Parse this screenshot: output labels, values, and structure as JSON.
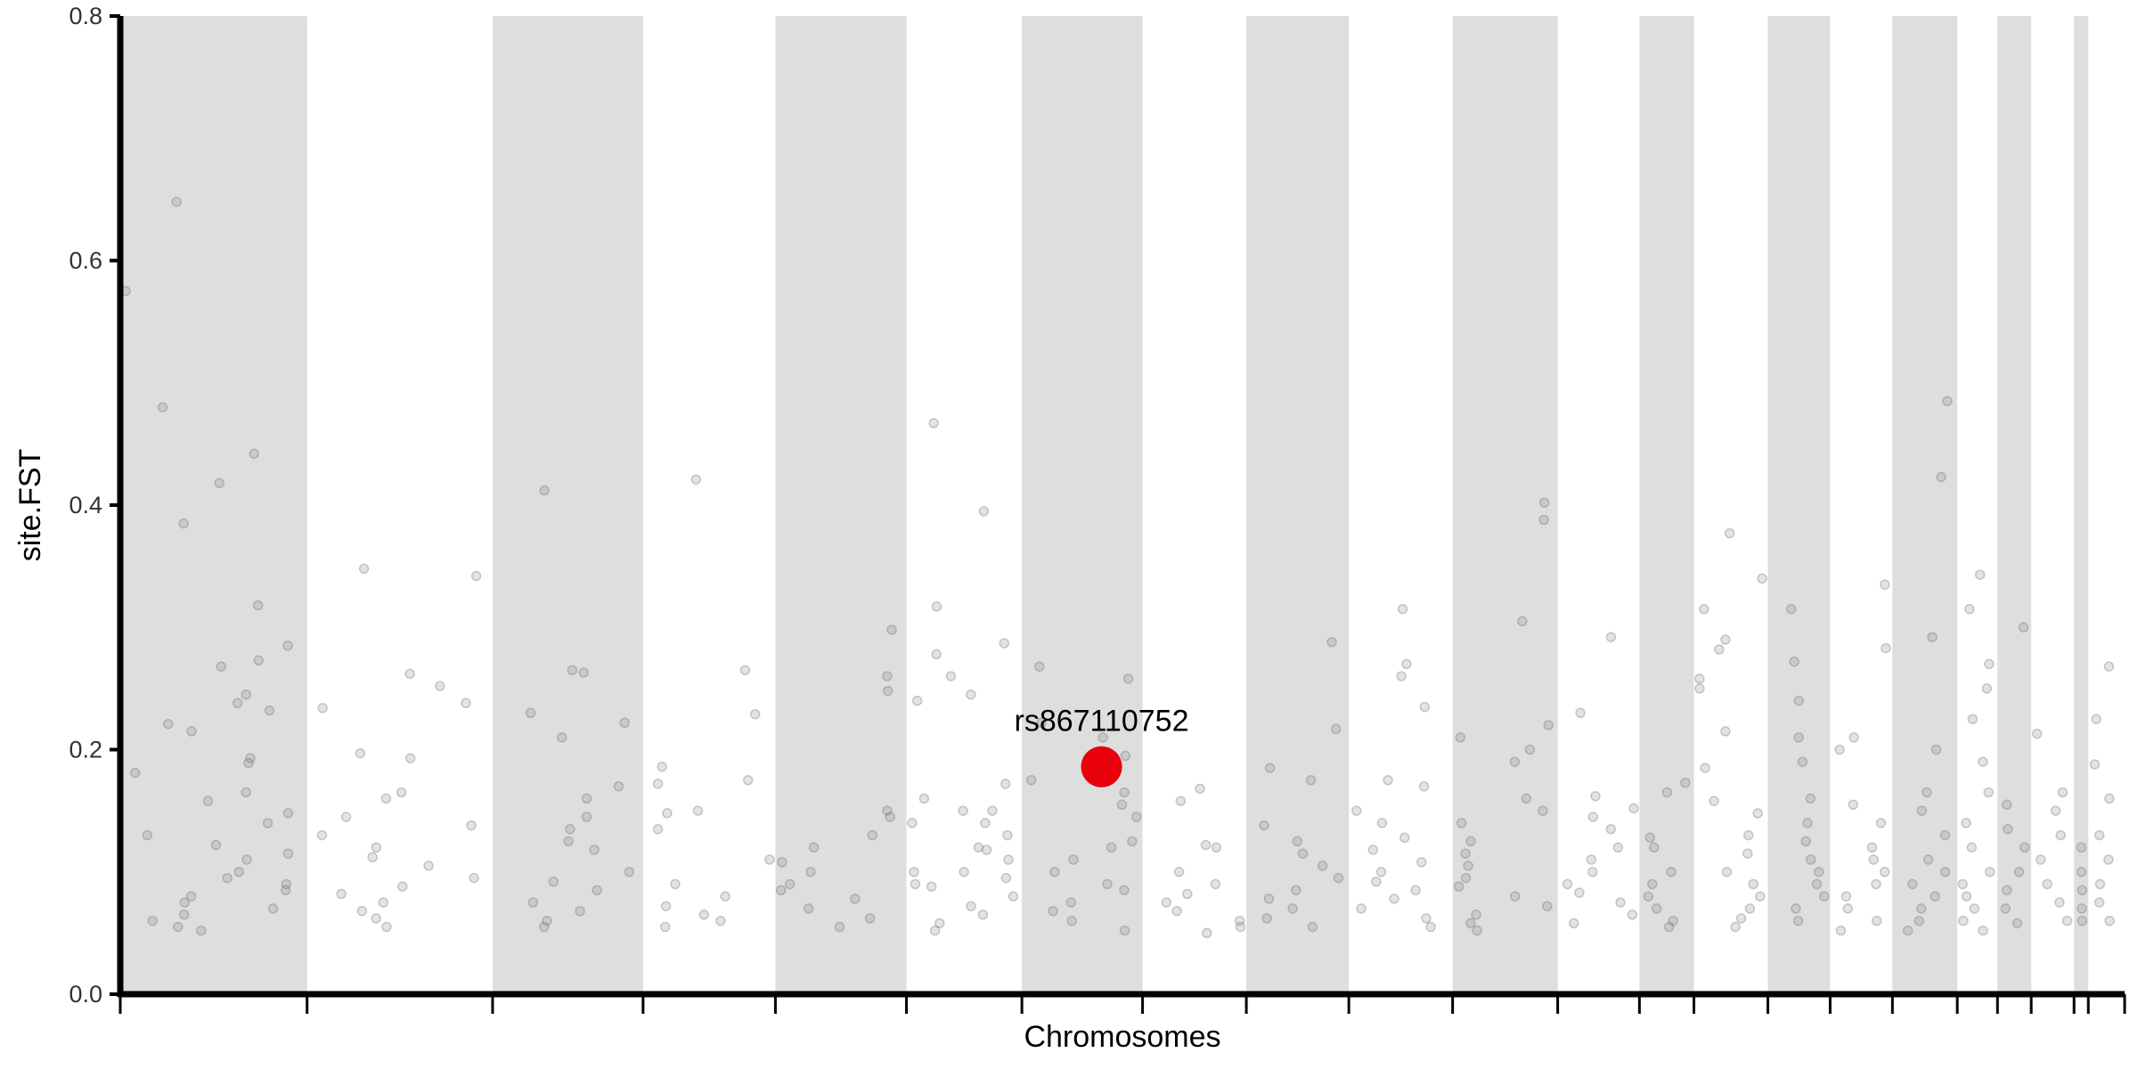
{
  "chart_data": {
    "type": "scatter",
    "title": "",
    "xlabel": "Chromosomes",
    "ylabel": "site.FST",
    "ylim": [
      0,
      0.8
    ],
    "yticks": [
      "0.0",
      "0.2",
      "0.4",
      "0.6",
      "0.8"
    ],
    "grid": false,
    "legend": "none",
    "chromosome_bands": "alternating grey / white",
    "point_color": "#808080",
    "band_color": "#dedede",
    "highlight_color": "#e8000b",
    "chromosome_count": 22,
    "chromosome_widths": [
      144,
      143,
      116,
      102,
      101,
      89,
      93,
      80,
      79,
      80,
      81,
      63,
      42,
      57,
      48,
      48,
      50,
      31,
      26,
      33,
      11,
      28
    ],
    "points": [
      [
        1,
        0.575
      ],
      [
        1,
        0.285
      ],
      [
        1,
        0.648
      ],
      [
        1,
        0.48
      ],
      [
        1,
        0.442
      ],
      [
        1,
        0.418
      ],
      [
        1,
        0.385
      ],
      [
        1,
        0.318
      ],
      [
        1,
        0.273
      ],
      [
        1,
        0.268
      ],
      [
        1,
        0.245
      ],
      [
        1,
        0.238
      ],
      [
        1,
        0.232
      ],
      [
        1,
        0.221
      ],
      [
        1,
        0.215
      ],
      [
        1,
        0.193
      ],
      [
        1,
        0.189
      ],
      [
        1,
        0.181
      ],
      [
        1,
        0.165
      ],
      [
        1,
        0.158
      ],
      [
        1,
        0.148
      ],
      [
        1,
        0.14
      ],
      [
        1,
        0.13
      ],
      [
        1,
        0.122
      ],
      [
        1,
        0.115
      ],
      [
        1,
        0.11
      ],
      [
        1,
        0.1
      ],
      [
        1,
        0.095
      ],
      [
        1,
        0.09
      ],
      [
        1,
        0.085
      ],
      [
        1,
        0.08
      ],
      [
        1,
        0.075
      ],
      [
        1,
        0.07
      ],
      [
        1,
        0.065
      ],
      [
        1,
        0.06
      ],
      [
        1,
        0.055
      ],
      [
        1,
        0.052
      ],
      [
        2,
        0.348
      ],
      [
        2,
        0.342
      ],
      [
        2,
        0.262
      ],
      [
        2,
        0.252
      ],
      [
        2,
        0.238
      ],
      [
        2,
        0.234
      ],
      [
        2,
        0.197
      ],
      [
        2,
        0.193
      ],
      [
        2,
        0.165
      ],
      [
        2,
        0.16
      ],
      [
        2,
        0.145
      ],
      [
        2,
        0.138
      ],
      [
        2,
        0.13
      ],
      [
        2,
        0.12
      ],
      [
        2,
        0.112
      ],
      [
        2,
        0.105
      ],
      [
        2,
        0.095
      ],
      [
        2,
        0.088
      ],
      [
        2,
        0.082
      ],
      [
        2,
        0.075
      ],
      [
        2,
        0.068
      ],
      [
        2,
        0.062
      ],
      [
        2,
        0.055
      ],
      [
        3,
        0.412
      ],
      [
        3,
        0.265
      ],
      [
        3,
        0.263
      ],
      [
        3,
        0.23
      ],
      [
        3,
        0.222
      ],
      [
        3,
        0.21
      ],
      [
        3,
        0.17
      ],
      [
        3,
        0.16
      ],
      [
        3,
        0.145
      ],
      [
        3,
        0.135
      ],
      [
        3,
        0.125
      ],
      [
        3,
        0.118
      ],
      [
        3,
        0.1
      ],
      [
        3,
        0.092
      ],
      [
        3,
        0.085
      ],
      [
        3,
        0.075
      ],
      [
        3,
        0.068
      ],
      [
        3,
        0.06
      ],
      [
        3,
        0.055
      ],
      [
        4,
        0.421
      ],
      [
        4,
        0.265
      ],
      [
        4,
        0.229
      ],
      [
        4,
        0.186
      ],
      [
        4,
        0.175
      ],
      [
        4,
        0.172
      ],
      [
        4,
        0.15
      ],
      [
        4,
        0.148
      ],
      [
        4,
        0.135
      ],
      [
        4,
        0.11
      ],
      [
        4,
        0.09
      ],
      [
        4,
        0.08
      ],
      [
        4,
        0.072
      ],
      [
        4,
        0.065
      ],
      [
        4,
        0.06
      ],
      [
        4,
        0.055
      ],
      [
        5,
        0.298
      ],
      [
        5,
        0.26
      ],
      [
        5,
        0.248
      ],
      [
        5,
        0.15
      ],
      [
        5,
        0.145
      ],
      [
        5,
        0.13
      ],
      [
        5,
        0.12
      ],
      [
        5,
        0.108
      ],
      [
        5,
        0.1
      ],
      [
        5,
        0.09
      ],
      [
        5,
        0.085
      ],
      [
        5,
        0.078
      ],
      [
        5,
        0.07
      ],
      [
        5,
        0.062
      ],
      [
        5,
        0.055
      ],
      [
        6,
        0.395
      ],
      [
        6,
        0.317
      ],
      [
        6,
        0.287
      ],
      [
        6,
        0.278
      ],
      [
        6,
        0.26
      ],
      [
        6,
        0.172
      ],
      [
        6,
        0.16
      ],
      [
        6,
        0.15
      ],
      [
        6,
        0.14
      ],
      [
        6,
        0.13
      ],
      [
        6,
        0.12
      ],
      [
        6,
        0.11
      ],
      [
        6,
        0.1
      ],
      [
        6,
        0.095
      ],
      [
        6,
        0.088
      ],
      [
        6,
        0.08
      ],
      [
        6,
        0.072
      ],
      [
        6,
        0.065
      ],
      [
        6,
        0.058
      ],
      [
        6,
        0.052
      ],
      [
        6,
        0.467
      ],
      [
        6,
        0.245
      ],
      [
        6,
        0.24
      ],
      [
        6,
        0.15
      ],
      [
        6,
        0.14
      ],
      [
        6,
        0.118
      ],
      [
        6,
        0.1
      ],
      [
        6,
        0.09
      ],
      [
        7,
        0.268
      ],
      [
        7,
        0.258
      ],
      [
        7,
        0.222
      ],
      [
        7,
        0.21
      ],
      [
        7,
        0.195
      ],
      [
        7,
        0.175
      ],
      [
        7,
        0.165
      ],
      [
        7,
        0.155
      ],
      [
        7,
        0.145
      ],
      [
        7,
        0.125
      ],
      [
        7,
        0.12
      ],
      [
        7,
        0.11
      ],
      [
        7,
        0.1
      ],
      [
        7,
        0.09
      ],
      [
        7,
        0.085
      ],
      [
        7,
        0.075
      ],
      [
        7,
        0.068
      ],
      [
        7,
        0.06
      ],
      [
        7,
        0.052
      ],
      [
        8,
        0.168
      ],
      [
        8,
        0.158
      ],
      [
        8,
        0.122
      ],
      [
        8,
        0.12
      ],
      [
        8,
        0.1
      ],
      [
        8,
        0.09
      ],
      [
        8,
        0.082
      ],
      [
        8,
        0.075
      ],
      [
        8,
        0.068
      ],
      [
        8,
        0.06
      ],
      [
        8,
        0.055
      ],
      [
        8,
        0.05
      ],
      [
        9,
        0.288
      ],
      [
        9,
        0.217
      ],
      [
        9,
        0.185
      ],
      [
        9,
        0.175
      ],
      [
        9,
        0.138
      ],
      [
        9,
        0.125
      ],
      [
        9,
        0.115
      ],
      [
        9,
        0.105
      ],
      [
        9,
        0.095
      ],
      [
        9,
        0.085
      ],
      [
        9,
        0.078
      ],
      [
        9,
        0.07
      ],
      [
        9,
        0.062
      ],
      [
        9,
        0.055
      ],
      [
        10,
        0.315
      ],
      [
        10,
        0.27
      ],
      [
        10,
        0.26
      ],
      [
        10,
        0.235
      ],
      [
        10,
        0.175
      ],
      [
        10,
        0.17
      ],
      [
        10,
        0.15
      ],
      [
        10,
        0.14
      ],
      [
        10,
        0.128
      ],
      [
        10,
        0.118
      ],
      [
        10,
        0.108
      ],
      [
        10,
        0.1
      ],
      [
        10,
        0.092
      ],
      [
        10,
        0.085
      ],
      [
        10,
        0.078
      ],
      [
        10,
        0.07
      ],
      [
        10,
        0.062
      ],
      [
        10,
        0.055
      ],
      [
        11,
        0.402
      ],
      [
        11,
        0.388
      ],
      [
        11,
        0.305
      ],
      [
        11,
        0.22
      ],
      [
        11,
        0.21
      ],
      [
        11,
        0.2
      ],
      [
        11,
        0.19
      ],
      [
        11,
        0.16
      ],
      [
        11,
        0.15
      ],
      [
        11,
        0.14
      ],
      [
        11,
        0.125
      ],
      [
        11,
        0.115
      ],
      [
        11,
        0.105
      ],
      [
        11,
        0.095
      ],
      [
        11,
        0.088
      ],
      [
        11,
        0.08
      ],
      [
        11,
        0.072
      ],
      [
        11,
        0.065
      ],
      [
        11,
        0.058
      ],
      [
        11,
        0.052
      ],
      [
        12,
        0.292
      ],
      [
        12,
        0.23
      ],
      [
        12,
        0.162
      ],
      [
        12,
        0.152
      ],
      [
        12,
        0.145
      ],
      [
        12,
        0.135
      ],
      [
        12,
        0.12
      ],
      [
        12,
        0.11
      ],
      [
        12,
        0.1
      ],
      [
        12,
        0.09
      ],
      [
        12,
        0.083
      ],
      [
        12,
        0.075
      ],
      [
        12,
        0.065
      ],
      [
        12,
        0.058
      ],
      [
        13,
        0.173
      ],
      [
        13,
        0.165
      ],
      [
        13,
        0.128
      ],
      [
        13,
        0.12
      ],
      [
        13,
        0.1
      ],
      [
        13,
        0.09
      ],
      [
        13,
        0.08
      ],
      [
        13,
        0.07
      ],
      [
        13,
        0.06
      ],
      [
        13,
        0.055
      ],
      [
        14,
        0.377
      ],
      [
        14,
        0.34
      ],
      [
        14,
        0.315
      ],
      [
        14,
        0.29
      ],
      [
        14,
        0.282
      ],
      [
        14,
        0.258
      ],
      [
        14,
        0.25
      ],
      [
        14,
        0.215
      ],
      [
        14,
        0.185
      ],
      [
        14,
        0.158
      ],
      [
        14,
        0.148
      ],
      [
        14,
        0.13
      ],
      [
        14,
        0.115
      ],
      [
        14,
        0.1
      ],
      [
        14,
        0.09
      ],
      [
        14,
        0.08
      ],
      [
        14,
        0.07
      ],
      [
        14,
        0.062
      ],
      [
        14,
        0.055
      ],
      [
        15,
        0.315
      ],
      [
        15,
        0.272
      ],
      [
        15,
        0.24
      ],
      [
        15,
        0.21
      ],
      [
        15,
        0.19
      ],
      [
        15,
        0.16
      ],
      [
        15,
        0.14
      ],
      [
        15,
        0.125
      ],
      [
        15,
        0.11
      ],
      [
        15,
        0.1
      ],
      [
        15,
        0.09
      ],
      [
        15,
        0.08
      ],
      [
        15,
        0.07
      ],
      [
        15,
        0.06
      ],
      [
        16,
        0.335
      ],
      [
        16,
        0.283
      ],
      [
        16,
        0.21
      ],
      [
        16,
        0.2
      ],
      [
        16,
        0.155
      ],
      [
        16,
        0.14
      ],
      [
        16,
        0.12
      ],
      [
        16,
        0.11
      ],
      [
        16,
        0.1
      ],
      [
        16,
        0.09
      ],
      [
        16,
        0.08
      ],
      [
        16,
        0.07
      ],
      [
        16,
        0.06
      ],
      [
        16,
        0.052
      ],
      [
        17,
        0.485
      ],
      [
        17,
        0.423
      ],
      [
        17,
        0.292
      ],
      [
        17,
        0.2
      ],
      [
        17,
        0.165
      ],
      [
        17,
        0.15
      ],
      [
        17,
        0.13
      ],
      [
        17,
        0.11
      ],
      [
        17,
        0.1
      ],
      [
        17,
        0.09
      ],
      [
        17,
        0.08
      ],
      [
        17,
        0.07
      ],
      [
        17,
        0.06
      ],
      [
        17,
        0.052
      ],
      [
        18,
        0.343
      ],
      [
        18,
        0.315
      ],
      [
        18,
        0.27
      ],
      [
        18,
        0.25
      ],
      [
        18,
        0.225
      ],
      [
        18,
        0.19
      ],
      [
        18,
        0.165
      ],
      [
        18,
        0.14
      ],
      [
        18,
        0.12
      ],
      [
        18,
        0.1
      ],
      [
        18,
        0.09
      ],
      [
        18,
        0.08
      ],
      [
        18,
        0.07
      ],
      [
        18,
        0.06
      ],
      [
        18,
        0.052
      ],
      [
        19,
        0.3
      ],
      [
        19,
        0.155
      ],
      [
        19,
        0.135
      ],
      [
        19,
        0.12
      ],
      [
        19,
        0.1
      ],
      [
        19,
        0.085
      ],
      [
        19,
        0.07
      ],
      [
        19,
        0.058
      ],
      [
        20,
        0.213
      ],
      [
        20,
        0.165
      ],
      [
        20,
        0.15
      ],
      [
        20,
        0.13
      ],
      [
        20,
        0.11
      ],
      [
        20,
        0.09
      ],
      [
        20,
        0.075
      ],
      [
        20,
        0.06
      ],
      [
        21,
        0.12
      ],
      [
        21,
        0.1
      ],
      [
        21,
        0.085
      ],
      [
        21,
        0.07
      ],
      [
        21,
        0.06
      ],
      [
        22,
        0.268
      ],
      [
        22,
        0.225
      ],
      [
        22,
        0.188
      ],
      [
        22,
        0.16
      ],
      [
        22,
        0.13
      ],
      [
        22,
        0.11
      ],
      [
        22,
        0.09
      ],
      [
        22,
        0.075
      ],
      [
        22,
        0.06
      ]
    ],
    "highlight": {
      "label": "rs867110752",
      "chromosome": 6,
      "value": 0.186
    }
  }
}
